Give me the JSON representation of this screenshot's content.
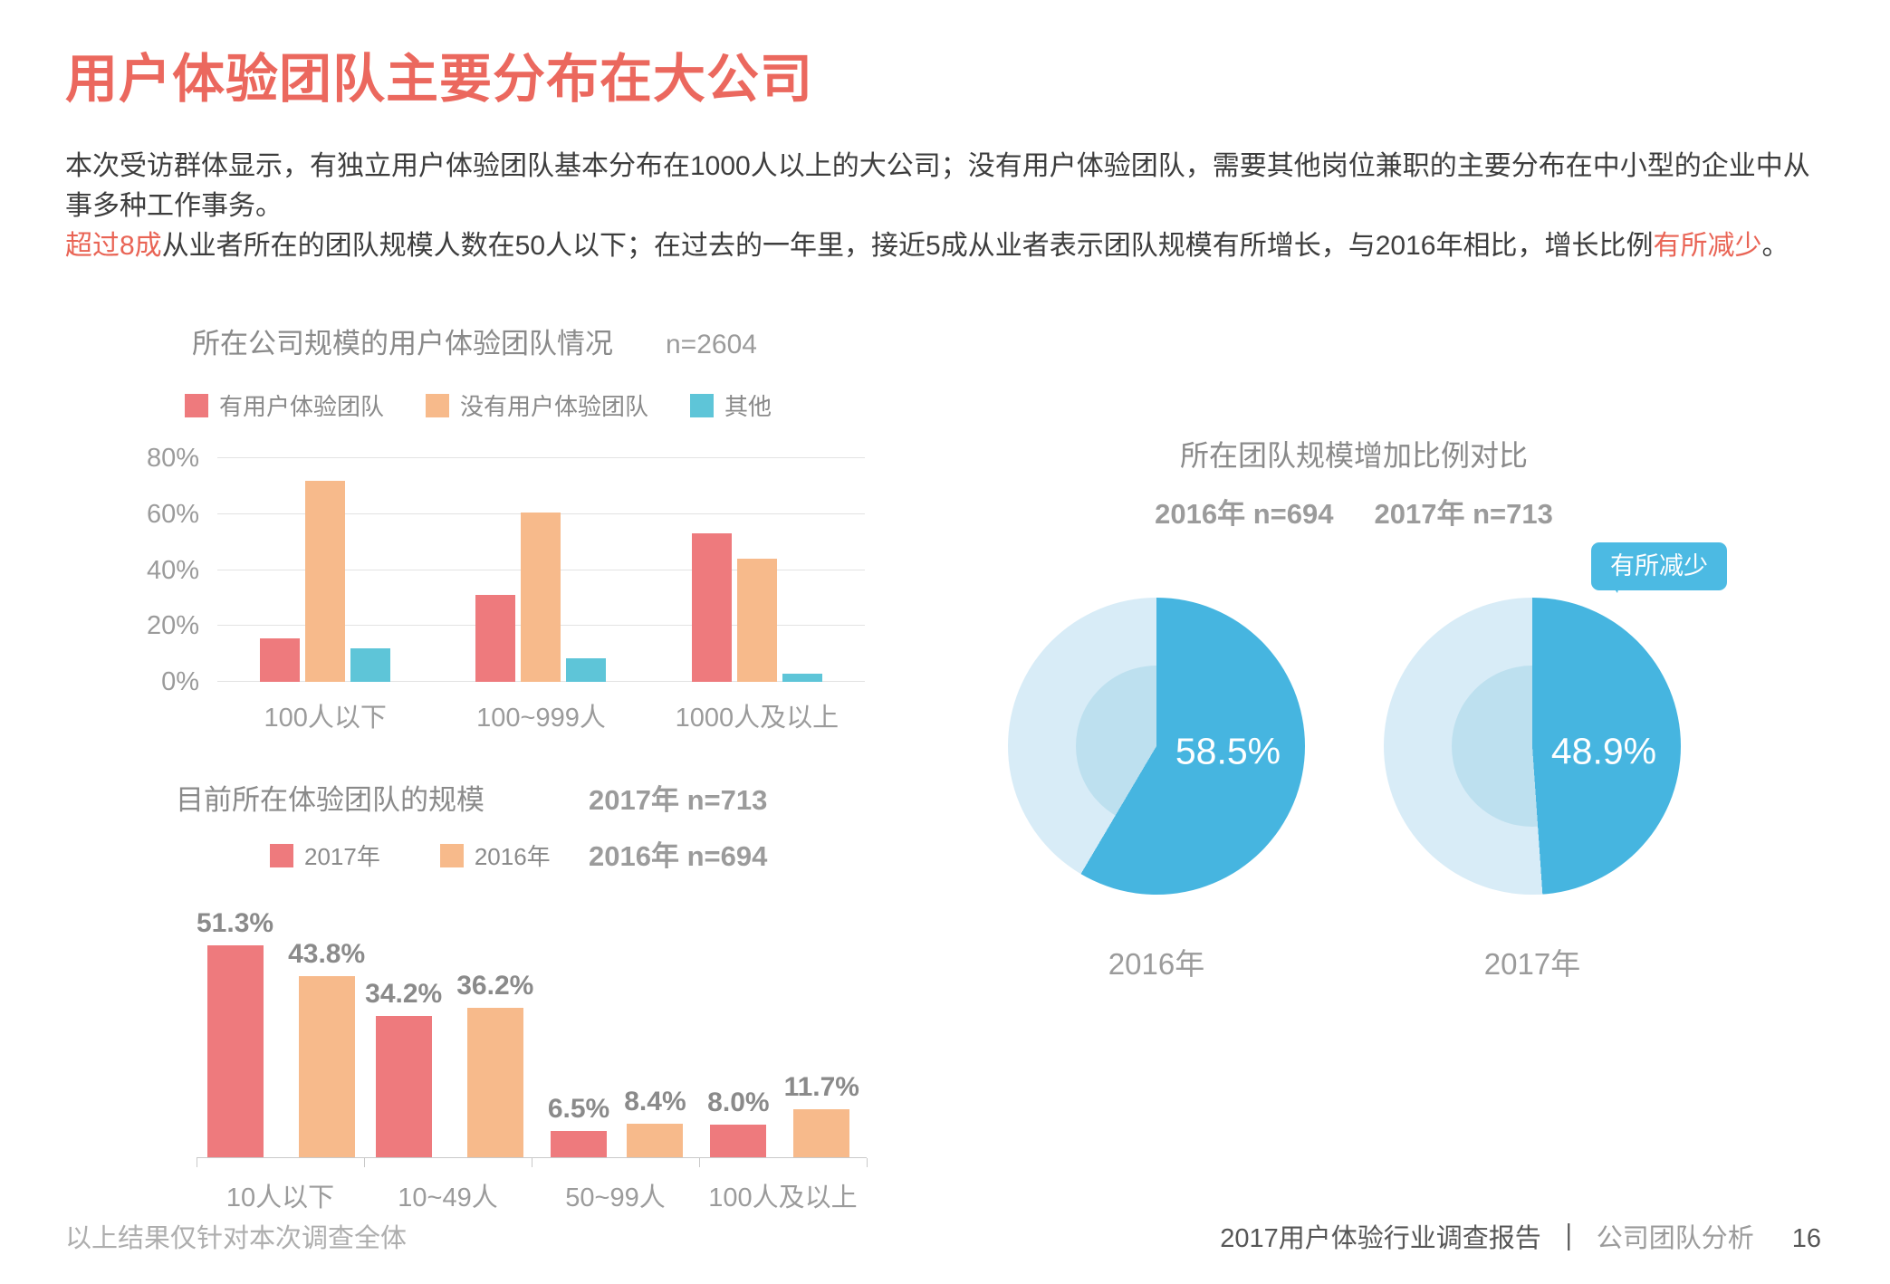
{
  "page": {
    "title": "用户体验团队主要分布在大公司",
    "para1": "本次受访群体显示，有独立用户体验团队基本分布在1000人以上的大公司；没有用户体验团队，需要其他岗位兼职的主要分布在中小型的企业中从事多种工作事务。",
    "para2_red1": "超过8成",
    "para2_mid": "从业者所在的团队规模人数在50人以下；在过去的一年里，接近5成从业者表示团队规模有所增长，与2016年相比，增长比例",
    "para2_red2": "有所减少",
    "para2_end": "。"
  },
  "colors": {
    "title_red": "#eb685e",
    "bar_red": "#ee7a7d",
    "bar_orange": "#f7ba8b",
    "bar_cyan": "#5ec5d8",
    "pie_active": "#46b5e0",
    "pie_rest": "#d8ecf7",
    "pie_inner": "#bde0ef",
    "callout_blue": "#4cbae3"
  },
  "chart_data": [
    {
      "type": "bar",
      "title": "所在公司规模的用户体验团队情况",
      "sample_label": "n=2604",
      "categories": [
        "100人以下",
        "100~999人",
        "1000人及以上"
      ],
      "series": [
        {
          "name": "有用户体验团队",
          "color": "#ee7a7d",
          "values": [
            15.5,
            31,
            53
          ]
        },
        {
          "name": "没有用户体验团队",
          "color": "#f7ba8b",
          "values": [
            72,
            60.5,
            44
          ]
        },
        {
          "name": "其他",
          "color": "#5ec5d8",
          "values": [
            12,
            8.5,
            3
          ]
        }
      ],
      "ylim": [
        0,
        80
      ],
      "yticks": [
        0,
        20,
        40,
        60,
        80
      ],
      "ytick_suffix": "%",
      "grid": true,
      "legend_position": "top",
      "data_labels": false,
      "baseline": false
    },
    {
      "type": "bar",
      "title": "目前所在体验团队的规模",
      "sample_labels": [
        "2017年 n=713",
        "2016年 n=694"
      ],
      "categories": [
        "10人以下",
        "10~49人",
        "50~99人",
        "100人及以上"
      ],
      "series": [
        {
          "name": "2017年",
          "color": "#ee7a7d",
          "values": [
            51.3,
            34.2,
            6.5,
            8.0
          ]
        },
        {
          "name": "2016年",
          "color": "#f7ba8b",
          "values": [
            43.8,
            36.2,
            8.4,
            11.7
          ]
        }
      ],
      "ylim": [
        0,
        55
      ],
      "yticks": [],
      "grid": false,
      "legend_position": "top",
      "data_labels": true,
      "baseline": true
    },
    {
      "type": "pie",
      "title": "所在团队规模增加比例对比",
      "subtitles": [
        "2016年 n=694",
        "2017年 n=713"
      ],
      "callout": "有所减少",
      "pies": [
        {
          "label": "2016年",
          "value": 58.5
        },
        {
          "label": "2017年",
          "value": 48.9
        }
      ],
      "colors": {
        "active": "#46b5e0",
        "rest": "#d8ecf7",
        "inner": "#bde0ef"
      }
    }
  ],
  "footer": {
    "left_note": "以上结果仅针对本次调查全体",
    "report_title": "2017用户体验行业调查报告",
    "divider": "｜",
    "section": "公司团队分析",
    "page_number": "16"
  }
}
